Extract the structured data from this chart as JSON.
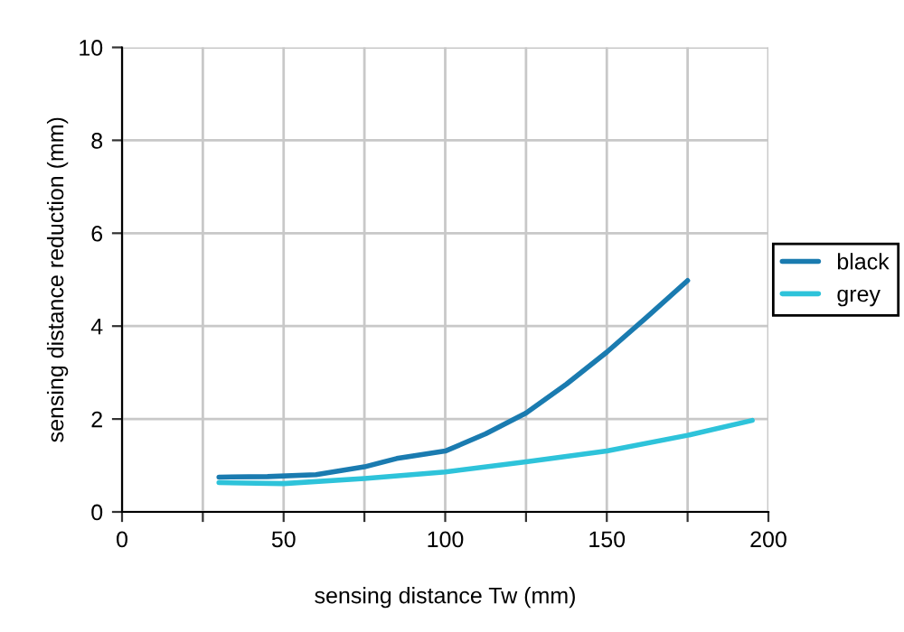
{
  "chart_data": {
    "type": "line",
    "xlabel": "sensing distance Tw (mm)",
    "ylabel": "sensing distance reduction (mm)",
    "xlim": [
      0,
      200
    ],
    "ylim": [
      0,
      10
    ],
    "xticks": [
      0,
      {
        "value": 25,
        "label": null
      },
      50,
      {
        "value": 75,
        "label": null
      },
      100,
      {
        "value": 125,
        "label": null
      },
      150,
      {
        "value": 175,
        "label": null
      },
      200
    ],
    "yticks": [
      0,
      2,
      4,
      6,
      8,
      10
    ],
    "grid": true,
    "legend": "right",
    "series": [
      {
        "name": "black",
        "color": "#1a7bb0",
        "x": [
          30,
          45,
          60,
          75,
          85,
          100,
          112.5,
          125,
          137.5,
          150,
          162.5,
          175
        ],
        "values": [
          0.75,
          0.76,
          0.8,
          0.97,
          1.15,
          1.31,
          1.68,
          2.13,
          2.75,
          3.44,
          4.2,
          4.98
        ]
      },
      {
        "name": "grey",
        "color": "#2ec3da",
        "x": [
          30,
          50,
          75,
          100,
          125,
          150,
          175,
          195
        ],
        "values": [
          0.63,
          0.61,
          0.72,
          0.86,
          1.08,
          1.31,
          1.65,
          1.97
        ]
      }
    ]
  }
}
